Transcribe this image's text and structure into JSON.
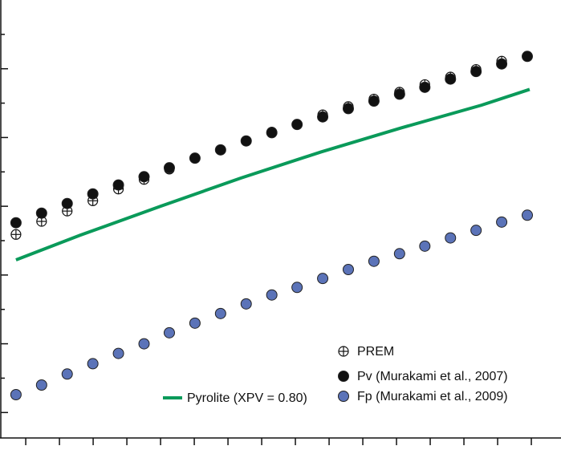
{
  "chart_data": {
    "type": "scatter",
    "xlim": [
      -0.74,
      15.88
    ],
    "xticks": [
      0,
      1,
      2,
      3,
      4,
      5,
      6,
      7,
      8,
      9,
      10,
      11,
      12,
      13,
      14,
      15
    ],
    "ylim": [
      -0.37,
      6.0
    ],
    "yticks": [
      0,
      0.5,
      1,
      1.5,
      2,
      2.5,
      3,
      3.5,
      4,
      4.5,
      5,
      5.5
    ],
    "x": [
      -0.29,
      0.47,
      1.23,
      1.99,
      2.75,
      3.51,
      4.26,
      5.02,
      5.78,
      6.54,
      7.3,
      8.05,
      8.81,
      9.57,
      10.33,
      11.09,
      11.84,
      12.6,
      13.36,
      14.12,
      14.88
    ],
    "series": [
      {
        "name": "PREM",
        "marker": "cross-circle",
        "color": "#111111",
        "values": [
          2.59,
          2.78,
          2.93,
          3.08,
          3.25,
          3.39,
          3.54,
          null,
          null,
          3.95,
          4.08,
          4.19,
          4.33,
          4.45,
          4.56,
          4.66,
          4.77,
          4.88,
          4.99,
          5.11,
          null
        ]
      },
      {
        "name": "Pv (Murakami et al., 2007)",
        "marker": "filled",
        "color": "#111111",
        "values": [
          2.76,
          2.9,
          3.04,
          3.18,
          3.31,
          3.43,
          3.56,
          3.7,
          3.82,
          3.95,
          4.07,
          4.19,
          4.3,
          4.42,
          4.53,
          4.63,
          4.73,
          4.85,
          4.96,
          5.07,
          5.18
        ]
      },
      {
        "name": "Fp (Murakami et al., 2009)",
        "marker": "filled",
        "color": "#5b73b8",
        "values": [
          0.26,
          0.4,
          0.56,
          0.71,
          0.86,
          1.0,
          1.16,
          1.3,
          1.44,
          1.58,
          1.71,
          1.82,
          1.95,
          2.08,
          2.2,
          2.31,
          2.42,
          2.54,
          2.65,
          2.77,
          2.87
        ]
      }
    ],
    "line": {
      "name": "Pyrolite (XPV = 0.80)",
      "color": "#0a9a5a",
      "x": [
        -0.29,
        1.62,
        4.0,
        6.38,
        8.76,
        11.14,
        13.52,
        14.95
      ],
      "values": [
        2.22,
        2.58,
        3.0,
        3.41,
        3.79,
        4.14,
        4.47,
        4.7
      ]
    }
  }
}
